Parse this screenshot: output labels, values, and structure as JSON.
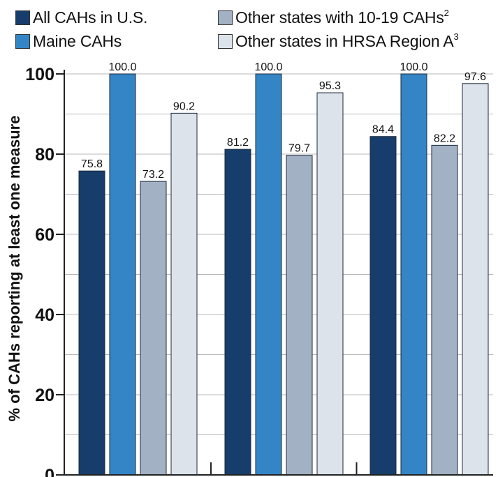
{
  "chart_data": {
    "type": "bar",
    "title": "",
    "xlabel": "",
    "ylabel": "% of CAHs reporting at least one measure",
    "ylim": [
      0,
      100
    ],
    "yticks": [
      "0",
      "20",
      "40",
      "60",
      "80",
      "100"
    ],
    "grid": true,
    "legend_position": "top",
    "categories": [
      "",
      "",
      ""
    ],
    "series": [
      {
        "name": "All CAHs in U.S.",
        "color": "#163d6b",
        "values": [
          75.8,
          81.2,
          84.4
        ],
        "labels": [
          "75.8",
          "81.2",
          "84.4"
        ]
      },
      {
        "name": "Maine CAHs",
        "color": "#3385c6",
        "values": [
          100.0,
          100.0,
          100.0
        ],
        "labels": [
          "100.0",
          "100.0",
          "100.0"
        ]
      },
      {
        "name": "Other states with 10-19 CAHs",
        "sup": "2",
        "color": "#a3b1c5",
        "values": [
          73.2,
          79.7,
          82.2
        ],
        "labels": [
          "73.2",
          "79.7",
          "82.2"
        ]
      },
      {
        "name": "Other states in HRSA Region A",
        "sup": "3",
        "color": "#dde3eb",
        "values": [
          90.2,
          95.3,
          97.6
        ],
        "labels": [
          "90.2",
          "95.3",
          "97.6"
        ]
      }
    ]
  }
}
